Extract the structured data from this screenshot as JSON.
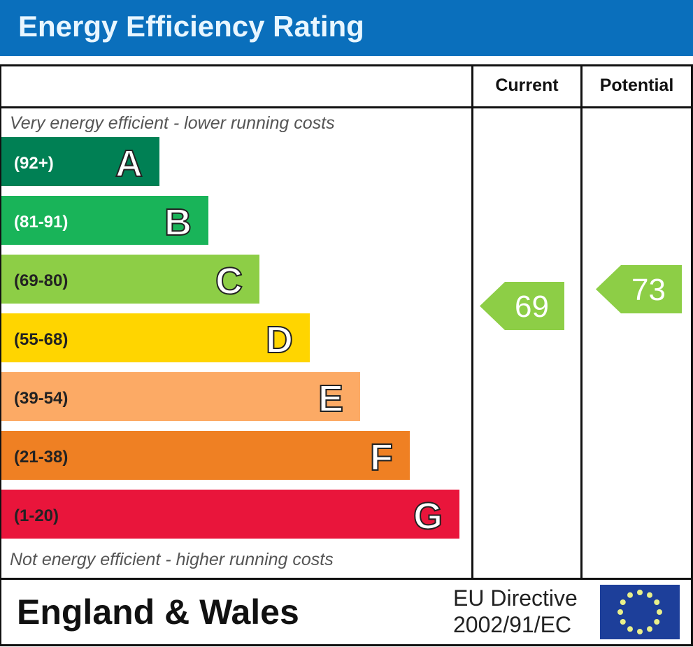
{
  "header": {
    "title": "Energy Efficiency Rating"
  },
  "columns": {
    "current": "Current",
    "potential": "Potential"
  },
  "notes": {
    "top": "Very energy efficient - lower running costs",
    "bottom": "Not energy efficient - higher running costs"
  },
  "footer": {
    "region": "England & Wales",
    "directive_line1": "EU Directive",
    "directive_line2": "2002/91/EC",
    "flag_icon": "eu-flag-icon"
  },
  "chart_data": {
    "type": "bar",
    "categories": [
      "A",
      "B",
      "C",
      "D",
      "E",
      "F",
      "G"
    ],
    "ranges": [
      "(92+)",
      "(81-91)",
      "(69-80)",
      "(55-68)",
      "(39-54)",
      "(21-38)",
      "(1-20)"
    ],
    "colors": [
      "#008054",
      "#19b459",
      "#8dce46",
      "#ffd500",
      "#fcaa65",
      "#ef8023",
      "#e9153b"
    ],
    "current": {
      "label": "Current",
      "value": 69,
      "band": "C",
      "color": "#8dce46"
    },
    "potential": {
      "label": "Potential",
      "value": 73,
      "band": "C",
      "color": "#8dce46"
    }
  }
}
